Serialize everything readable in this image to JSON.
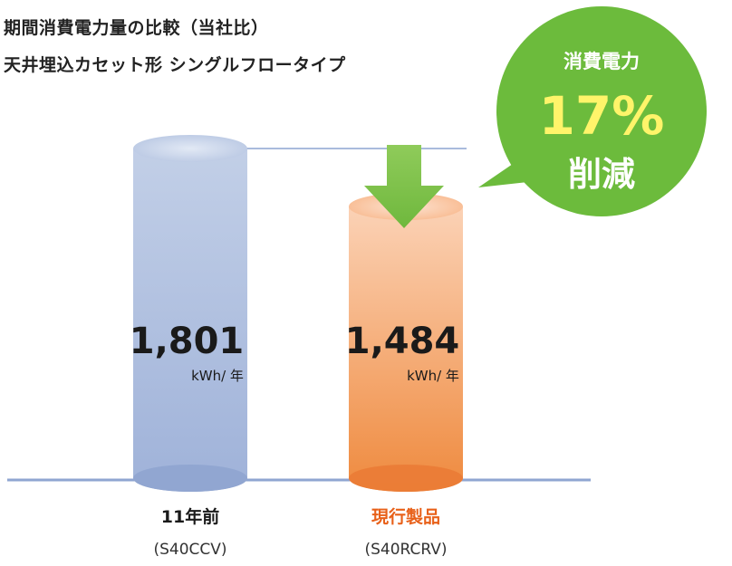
{
  "chart_data": {
    "type": "bar",
    "title_lines": [
      "期間消費電力量の比較（当社比）",
      "天井埋込カセット形 シングルフロータイプ"
    ],
    "categories": [
      "11年前",
      "現行製品"
    ],
    "models": [
      "(S40CCV)",
      "(S40RCRV)"
    ],
    "values": [
      1801,
      1484
    ],
    "value_labels": [
      "1,801",
      "1,484"
    ],
    "unit": "kWh/ 年",
    "ylim": [
      0,
      1801
    ],
    "colors": [
      "#a9bbdd",
      "#f2a060"
    ],
    "label_colors": [
      "#1a1a1a",
      "#e8611a"
    ],
    "callout": {
      "line1": "消費電力",
      "value": "17%",
      "line2": "削減",
      "bubble_color": "#6cbb3c",
      "value_color": "#fff46a"
    },
    "arrow_color": "#7fc24a"
  }
}
